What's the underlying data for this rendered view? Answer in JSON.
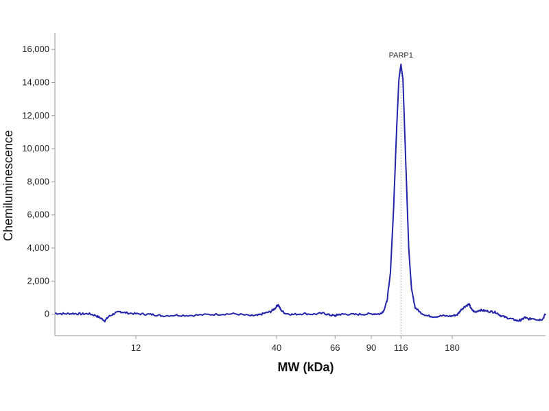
{
  "chart_data": {
    "type": "line",
    "title": "",
    "xlabel": "MW (kDa)",
    "ylabel": "Chemiluminescence",
    "x_scale": "log",
    "xlim": [
      6,
      400
    ],
    "ylim": [
      -1300,
      17000
    ],
    "x_ticks": [
      {
        "value": 12,
        "label": "12"
      },
      {
        "value": 40,
        "label": "40"
      },
      {
        "value": 66,
        "label": "66"
      },
      {
        "value": 90,
        "label": "90"
      },
      {
        "value": 116,
        "label": "116"
      },
      {
        "value": 180,
        "label": "180"
      }
    ],
    "y_ticks": [
      {
        "value": 0,
        "label": "0"
      },
      {
        "value": 2000,
        "label": "2,000"
      },
      {
        "value": 4000,
        "label": "4,000"
      },
      {
        "value": 6000,
        "label": "6,000"
      },
      {
        "value": 8000,
        "label": "8,000"
      },
      {
        "value": 10000,
        "label": "10,000"
      },
      {
        "value": 12000,
        "label": "12,000"
      },
      {
        "value": 14000,
        "label": "14,000"
      },
      {
        "value": 16000,
        "label": "16,000"
      }
    ],
    "grid": false,
    "line_color": "#2222aa",
    "marker_line_color": "#aaaaaa",
    "annotations": [
      {
        "text": "PARP1",
        "x": 116,
        "y": 15100
      }
    ],
    "series": [
      {
        "points": [
          [
            6.0,
            50
          ],
          [
            6.5,
            20
          ],
          [
            7.0,
            40
          ],
          [
            7.5,
            10
          ],
          [
            8.0,
            30
          ],
          [
            8.5,
            -80
          ],
          [
            8.9,
            -250
          ],
          [
            9.2,
            -400
          ],
          [
            9.5,
            -150
          ],
          [
            10.0,
            50
          ],
          [
            10.5,
            150
          ],
          [
            11.0,
            80
          ],
          [
            12.0,
            20
          ],
          [
            13.0,
            0
          ],
          [
            14.0,
            -30
          ],
          [
            15.0,
            -100
          ],
          [
            17.0,
            -60
          ],
          [
            19.0,
            -80
          ],
          [
            22.0,
            -30
          ],
          [
            25.0,
            0
          ],
          [
            28.0,
            20
          ],
          [
            32.0,
            -100
          ],
          [
            34.0,
            -80
          ],
          [
            36.0,
            50
          ],
          [
            38.0,
            150
          ],
          [
            39.5,
            350
          ],
          [
            40.5,
            600
          ],
          [
            41.5,
            250
          ],
          [
            43.0,
            50
          ],
          [
            46.0,
            -20
          ],
          [
            50.0,
            30
          ],
          [
            55.0,
            0
          ],
          [
            60.0,
            50
          ],
          [
            63.0,
            -50
          ],
          [
            66.0,
            -100
          ],
          [
            68.0,
            -20
          ],
          [
            72.0,
            0
          ],
          [
            78.0,
            -20
          ],
          [
            85.0,
            0
          ],
          [
            92.0,
            20
          ],
          [
            97.0,
            10
          ],
          [
            100.0,
            200
          ],
          [
            103.0,
            800
          ],
          [
            106.0,
            2500
          ],
          [
            109.0,
            6500
          ],
          [
            112.0,
            11500
          ],
          [
            114.0,
            14200
          ],
          [
            116.0,
            15100
          ],
          [
            118.0,
            14200
          ],
          [
            121.0,
            9000
          ],
          [
            124.0,
            4000
          ],
          [
            127.0,
            1500
          ],
          [
            131.0,
            400
          ],
          [
            137.0,
            100
          ],
          [
            145.0,
            -100
          ],
          [
            155.0,
            -150
          ],
          [
            165.0,
            -100
          ],
          [
            178.0,
            -120
          ],
          [
            188.0,
            -30
          ],
          [
            195.0,
            300
          ],
          [
            202.0,
            500
          ],
          [
            208.0,
            600
          ],
          [
            212.0,
            300
          ],
          [
            218.0,
            120
          ],
          [
            228.0,
            250
          ],
          [
            238.0,
            200
          ],
          [
            252.0,
            150
          ],
          [
            262.0,
            100
          ],
          [
            272.0,
            -80
          ],
          [
            285.0,
            -200
          ],
          [
            300.0,
            -300
          ],
          [
            315.0,
            -400
          ],
          [
            325.0,
            -350
          ],
          [
            335.0,
            -200
          ],
          [
            345.0,
            -300
          ],
          [
            360.0,
            -250
          ],
          [
            375.0,
            -350
          ],
          [
            390.0,
            -300
          ],
          [
            400.0,
            20
          ]
        ]
      }
    ]
  }
}
